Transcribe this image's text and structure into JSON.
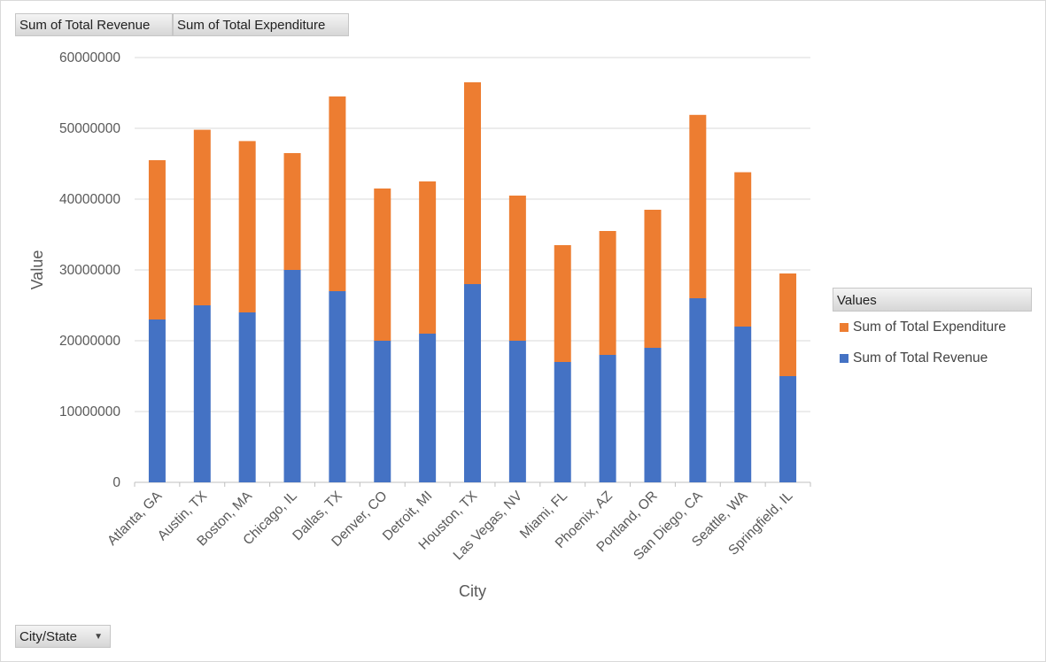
{
  "field_buttons": {
    "revenue": "Sum of Total Revenue",
    "expenditure": "Sum of Total Expenditure",
    "city_state": "City/State"
  },
  "legend": {
    "title": "Values",
    "items": [
      {
        "label": "Sum of Total Expenditure",
        "color": "#ED7D31"
      },
      {
        "label": "Sum of Total Revenue",
        "color": "#4472C4"
      }
    ]
  },
  "chart_data": {
    "type": "bar",
    "stacked": true,
    "categories": [
      "Atlanta, GA",
      "Austin, TX",
      "Boston, MA",
      "Chicago, IL",
      "Dallas, TX",
      "Denver, CO",
      "Detroit, MI",
      "Houston, TX",
      "Las Vegas, NV",
      "Miami, FL",
      "Phoenix, AZ",
      "Portland, OR",
      "San Diego, CA",
      "Seattle, WA",
      "Springfield, IL"
    ],
    "series": [
      {
        "name": "Sum of Total Revenue",
        "color": "#4472C4",
        "values": [
          23000000,
          25000000,
          24000000,
          30000000,
          27000000,
          20000000,
          21000000,
          28000000,
          20000000,
          17000000,
          18000000,
          19000000,
          26000000,
          22000000,
          15000000
        ]
      },
      {
        "name": "Sum of Total Expenditure",
        "color": "#ED7D31",
        "values": [
          22500000,
          24800000,
          24200000,
          16500000,
          27500000,
          21500000,
          21500000,
          28500000,
          20500000,
          16500000,
          17500000,
          19500000,
          25900000,
          21800000,
          14500000
        ]
      }
    ],
    "xlabel": "City",
    "ylabel": "Value",
    "ylim": [
      0,
      60000000
    ],
    "yticks": [
      "0",
      "10000000",
      "20000000",
      "30000000",
      "40000000",
      "50000000",
      "60000000"
    ],
    "grid": true,
    "legend_position": "right"
  }
}
